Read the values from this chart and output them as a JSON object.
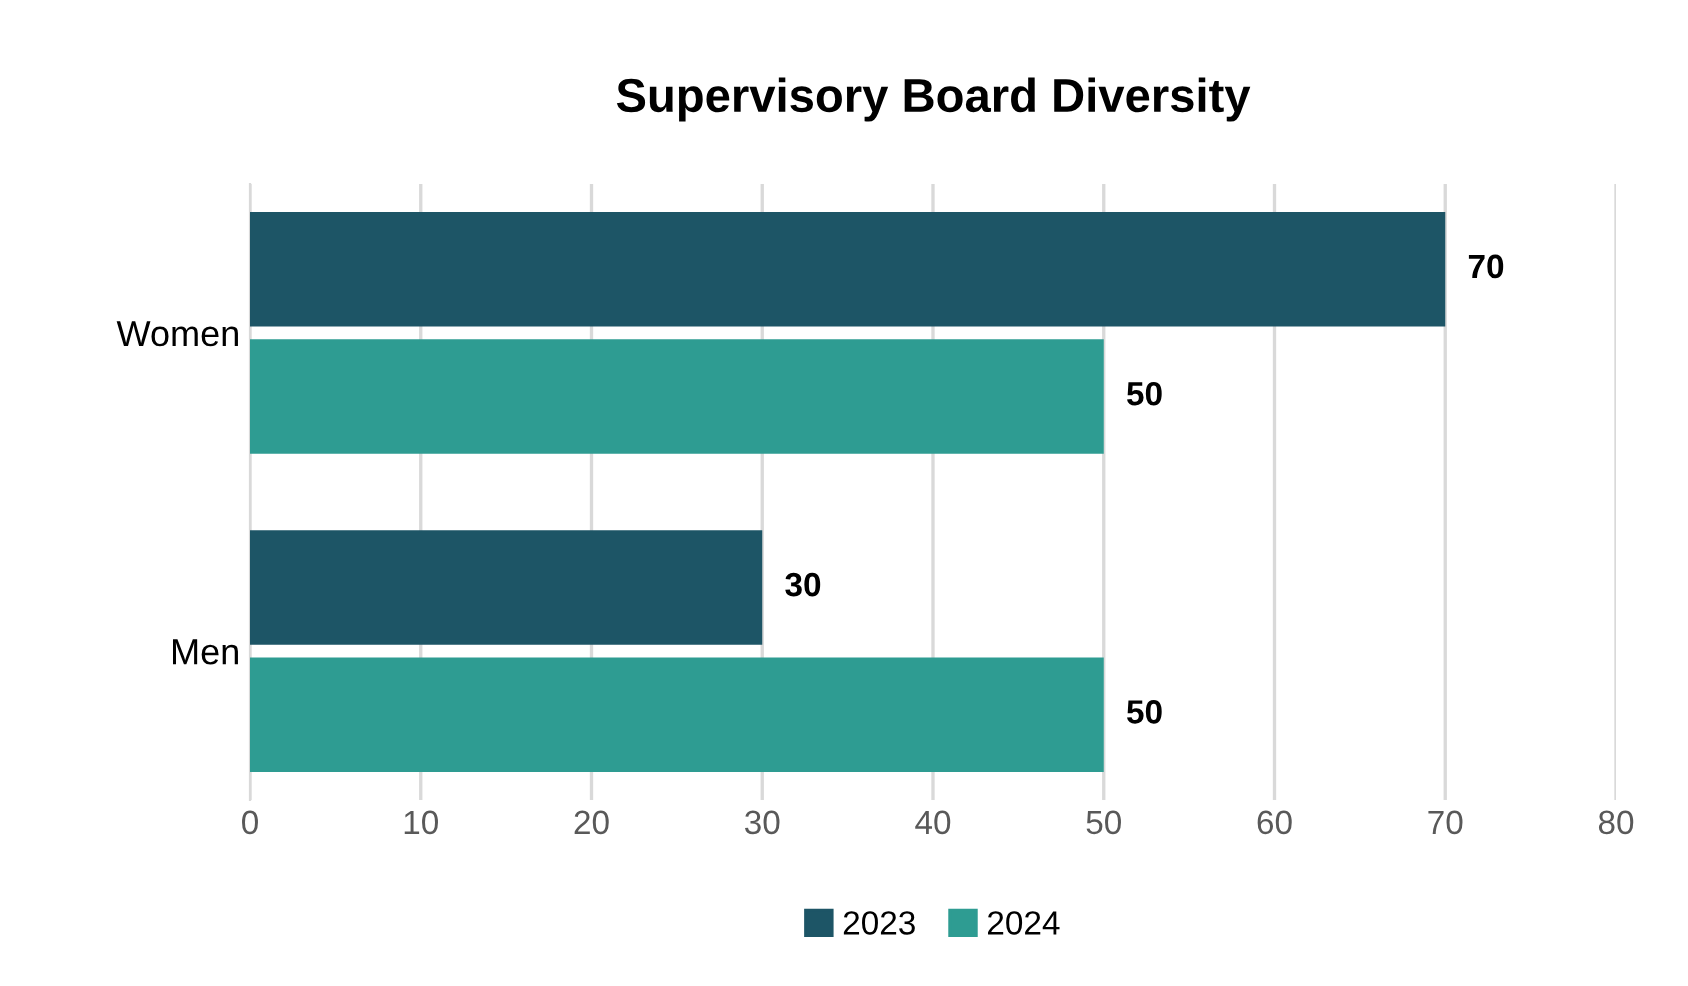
{
  "chart_data": {
    "type": "bar",
    "orientation": "horizontal",
    "title": "Supervisory Board Diversity",
    "categories": [
      "Women",
      "Men"
    ],
    "series": [
      {
        "name": "2023",
        "color": "#1d5566",
        "values": [
          70,
          30
        ]
      },
      {
        "name": "2024",
        "color": "#2e9c92",
        "values": [
          50,
          50
        ]
      }
    ],
    "xlim": [
      0,
      80
    ],
    "xticks": [
      0,
      10,
      20,
      30,
      40,
      50,
      60,
      70,
      80
    ],
    "grid": "x",
    "legend": "bottom",
    "data_labels": true
  }
}
